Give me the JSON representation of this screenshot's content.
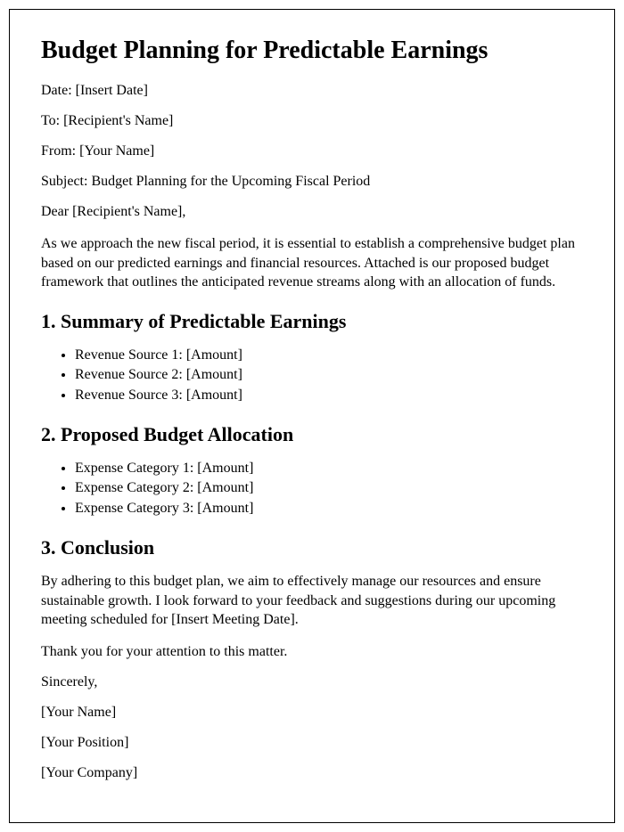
{
  "title": "Budget Planning for Predictable Earnings",
  "meta": {
    "date": "Date: [Insert Date]",
    "to": "To: [Recipient's Name]",
    "from": "From: [Your Name]",
    "subject": "Subject: Budget Planning for the Upcoming Fiscal Period",
    "salutation": "Dear [Recipient's Name],"
  },
  "intro": "As we approach the new fiscal period, it is essential to establish a comprehensive budget plan based on our predicted earnings and financial resources. Attached is our proposed budget framework that outlines the anticipated revenue streams along with an allocation of funds.",
  "section1": {
    "heading": "1. Summary of Predictable Earnings",
    "items": [
      "Revenue Source 1: [Amount]",
      "Revenue Source 2: [Amount]",
      "Revenue Source 3: [Amount]"
    ]
  },
  "section2": {
    "heading": "2. Proposed Budget Allocation",
    "items": [
      "Expense Category 1: [Amount]",
      "Expense Category 2: [Amount]",
      "Expense Category 3: [Amount]"
    ]
  },
  "section3": {
    "heading": "3. Conclusion",
    "para": "By adhering to this budget plan, we aim to effectively manage our resources and ensure sustainable growth. I look forward to your feedback and suggestions during our upcoming meeting scheduled for [Insert Meeting Date]."
  },
  "closing": {
    "thanks": "Thank you for your attention to this matter.",
    "signoff": "Sincerely,",
    "name": "[Your Name]",
    "position": "[Your Position]",
    "company": "[Your Company]"
  }
}
